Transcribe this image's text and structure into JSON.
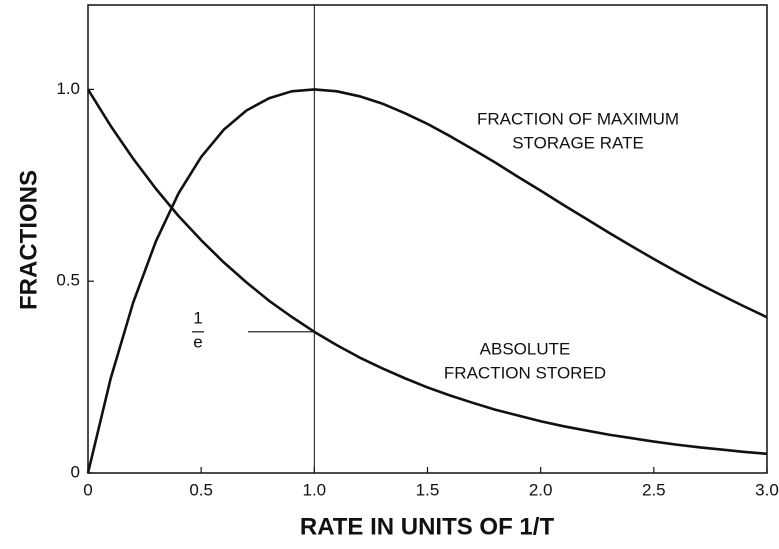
{
  "chart_data": {
    "type": "line",
    "xlabel": "RATE IN UNITS OF 1/T",
    "ylabel": "FRACTIONS",
    "x": [
      0,
      0.1,
      0.2,
      0.3,
      0.4,
      0.5,
      0.6,
      0.7,
      0.8,
      0.9,
      1.0,
      1.1,
      1.2,
      1.3,
      1.4,
      1.5,
      1.6,
      1.7,
      1.8,
      1.9,
      2.0,
      2.1,
      2.2,
      2.3,
      2.4,
      2.5,
      2.6,
      2.7,
      2.8,
      2.9,
      3.0
    ],
    "series": [
      {
        "label": [
          "FRACTION OF MAXIMUM",
          "STORAGE RATE"
        ],
        "color": "#111111",
        "values": [
          0,
          0.246,
          0.445,
          0.604,
          0.729,
          0.824,
          0.895,
          0.945,
          0.977,
          0.995,
          1,
          0.995,
          0.982,
          0.963,
          0.938,
          0.91,
          0.878,
          0.844,
          0.809,
          0.772,
          0.736,
          0.699,
          0.663,
          0.627,
          0.592,
          0.558,
          0.525,
          0.493,
          0.463,
          0.434,
          0.406
        ]
      },
      {
        "label": [
          "ABSOLUTE",
          "FRACTION STORED"
        ],
        "color": "#111111",
        "values": [
          1,
          0.905,
          0.819,
          0.741,
          0.67,
          0.607,
          0.549,
          0.497,
          0.449,
          0.407,
          0.368,
          0.333,
          0.301,
          0.273,
          0.247,
          0.223,
          0.202,
          0.183,
          0.165,
          0.15,
          0.135,
          0.122,
          0.111,
          0.1,
          0.091,
          0.082,
          0.074,
          0.067,
          0.061,
          0.055,
          0.05
        ]
      }
    ],
    "reference_lines": [
      {
        "axis": "x",
        "value": 1
      },
      {
        "axis": "y",
        "value": 0.368,
        "label_top": "1",
        "label_bottom": "e"
      }
    ],
    "xlim": [
      0,
      3
    ],
    "xticks": [
      0,
      0.5,
      {
        "value": 1,
        "label": "1.0"
      },
      1.5,
      {
        "value": 2,
        "label": "2.0"
      },
      2.5,
      {
        "value": 3,
        "label": "3.0"
      }
    ],
    "ylim": [
      0,
      1.22
    ],
    "yticks": [
      0,
      0.5,
      {
        "value": 1,
        "label": "1.0"
      }
    ],
    "grid": false
  }
}
